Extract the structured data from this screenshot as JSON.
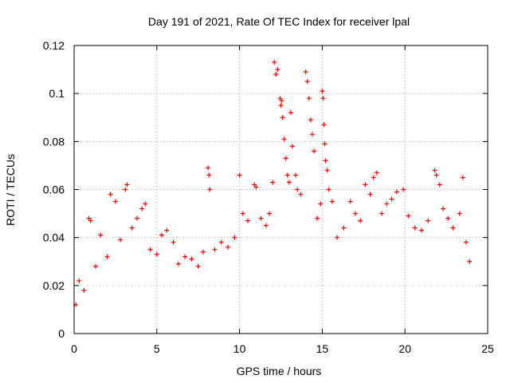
{
  "chart_data": {
    "type": "scatter",
    "title": "Day 191 of 2021, Rate Of TEC Index for receiver lpal",
    "xlabel": "GPS time / hours",
    "ylabel": "ROTI / TECUs",
    "xlim": [
      0,
      25
    ],
    "ylim": [
      0,
      0.12
    ],
    "x_ticks": [
      "0",
      "5",
      "10",
      "15",
      "20",
      "25"
    ],
    "y_ticks": [
      "0",
      "0.02",
      "0.04",
      "0.06",
      "0.08",
      "0.1",
      "0.12"
    ],
    "grid": true,
    "marker": "plus",
    "color": "#ff0000",
    "series": [
      {
        "values": [
          [
            0.1,
            0.012
          ],
          [
            0.3,
            0.022
          ],
          [
            0.6,
            0.018
          ],
          [
            0.9,
            0.048
          ],
          [
            1.0,
            0.047
          ],
          [
            1.3,
            0.028
          ],
          [
            1.6,
            0.041
          ],
          [
            2.0,
            0.032
          ],
          [
            2.2,
            0.058
          ],
          [
            2.5,
            0.055
          ],
          [
            2.8,
            0.039
          ],
          [
            3.1,
            0.06
          ],
          [
            3.2,
            0.062
          ],
          [
            3.5,
            0.044
          ],
          [
            3.8,
            0.048
          ],
          [
            4.1,
            0.052
          ],
          [
            4.3,
            0.054
          ],
          [
            4.6,
            0.035
          ],
          [
            5.0,
            0.033
          ],
          [
            5.3,
            0.041
          ],
          [
            5.6,
            0.043
          ],
          [
            6.0,
            0.038
          ],
          [
            6.3,
            0.029
          ],
          [
            6.7,
            0.032
          ],
          [
            7.1,
            0.031
          ],
          [
            7.5,
            0.028
          ],
          [
            7.8,
            0.034
          ],
          [
            8.1,
            0.069
          ],
          [
            8.15,
            0.066
          ],
          [
            8.2,
            0.06
          ],
          [
            8.5,
            0.035
          ],
          [
            8.9,
            0.038
          ],
          [
            9.3,
            0.036
          ],
          [
            9.7,
            0.04
          ],
          [
            10.0,
            0.066
          ],
          [
            10.2,
            0.05
          ],
          [
            10.5,
            0.047
          ],
          [
            10.9,
            0.062
          ],
          [
            11.0,
            0.061
          ],
          [
            11.3,
            0.048
          ],
          [
            11.6,
            0.045
          ],
          [
            11.8,
            0.05
          ],
          [
            12.0,
            0.063
          ],
          [
            12.1,
            0.113
          ],
          [
            12.2,
            0.108
          ],
          [
            12.3,
            0.11
          ],
          [
            12.45,
            0.098
          ],
          [
            12.5,
            0.095
          ],
          [
            12.55,
            0.097
          ],
          [
            12.6,
            0.09
          ],
          [
            12.7,
            0.081
          ],
          [
            12.8,
            0.073
          ],
          [
            12.9,
            0.066
          ],
          [
            13.0,
            0.063
          ],
          [
            13.1,
            0.092
          ],
          [
            13.2,
            0.078
          ],
          [
            13.4,
            0.066
          ],
          [
            13.5,
            0.06
          ],
          [
            13.7,
            0.058
          ],
          [
            14.0,
            0.109
          ],
          [
            14.1,
            0.105
          ],
          [
            14.2,
            0.098
          ],
          [
            14.3,
            0.089
          ],
          [
            14.4,
            0.083
          ],
          [
            14.5,
            0.076
          ],
          [
            14.7,
            0.048
          ],
          [
            14.9,
            0.054
          ],
          [
            15.0,
            0.101
          ],
          [
            15.05,
            0.098
          ],
          [
            15.1,
            0.087
          ],
          [
            15.15,
            0.079
          ],
          [
            15.2,
            0.072
          ],
          [
            15.3,
            0.068
          ],
          [
            15.4,
            0.06
          ],
          [
            15.6,
            0.055
          ],
          [
            15.9,
            0.04
          ],
          [
            16.3,
            0.044
          ],
          [
            16.7,
            0.055
          ],
          [
            17.0,
            0.05
          ],
          [
            17.3,
            0.047
          ],
          [
            17.6,
            0.062
          ],
          [
            17.9,
            0.058
          ],
          [
            18.1,
            0.065
          ],
          [
            18.3,
            0.067
          ],
          [
            18.6,
            0.05
          ],
          [
            18.9,
            0.054
          ],
          [
            19.2,
            0.056
          ],
          [
            19.5,
            0.059
          ],
          [
            19.9,
            0.06
          ],
          [
            20.2,
            0.049
          ],
          [
            20.6,
            0.044
          ],
          [
            21.0,
            0.043
          ],
          [
            21.4,
            0.047
          ],
          [
            21.8,
            0.068
          ],
          [
            21.9,
            0.066
          ],
          [
            22.1,
            0.062
          ],
          [
            22.3,
            0.052
          ],
          [
            22.6,
            0.048
          ],
          [
            22.9,
            0.044
          ],
          [
            23.3,
            0.05
          ],
          [
            23.5,
            0.065
          ],
          [
            23.7,
            0.038
          ],
          [
            23.9,
            0.03
          ]
        ]
      }
    ]
  }
}
